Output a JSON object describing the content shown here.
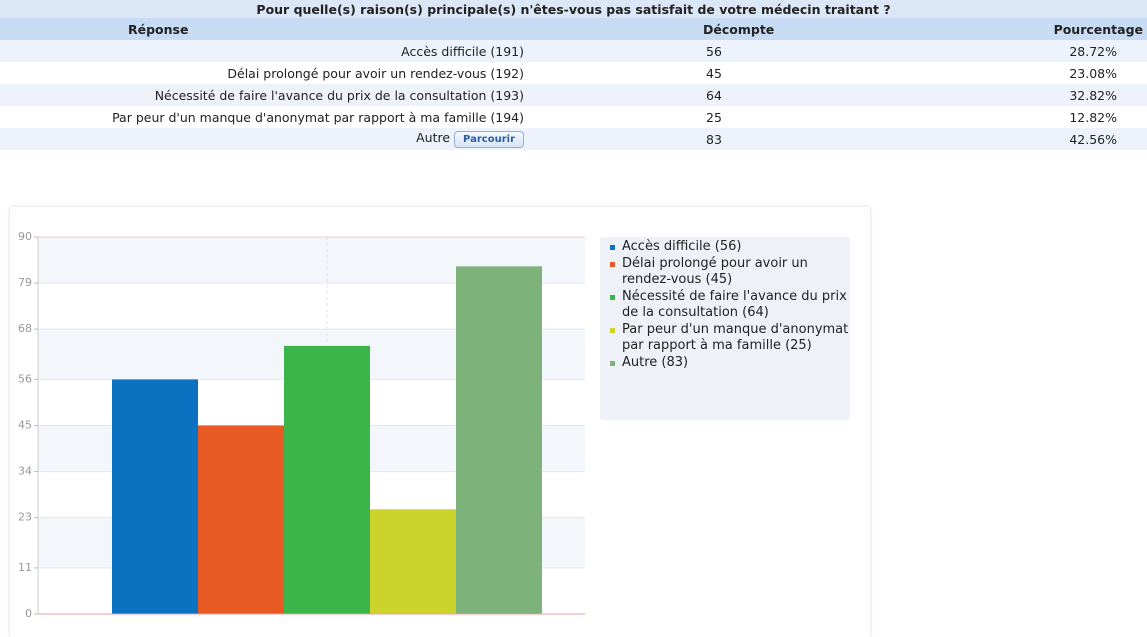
{
  "table": {
    "title": "Pour quelle(s) raison(s) principale(s) n'êtes-vous pas satisfait de votre médecin traitant ?",
    "headers": [
      "Réponse",
      "Décompte",
      "Pourcentage"
    ],
    "rows": [
      [
        "Accès difficile (191)",
        56,
        "28.72%"
      ],
      [
        "Délai prolongé pour avoir un rendez-vous (192)",
        45,
        "23.08%"
      ],
      [
        "Nécessité de faire l'avance du prix de la consultation (193)",
        64,
        "32.82%"
      ],
      [
        "Par peur d'un manque d'anonymat par rapport à ma famille (194)",
        25,
        "12.82%"
      ],
      [
        "Autre",
        83,
        "42.56%"
      ]
    ],
    "browse_button": "Parcourir"
  },
  "chart_data": {
    "type": "bar",
    "categories": [
      "Accès difficile (56)",
      "Délai prolongé pour avoir un rendez-vous (45)",
      "Nécessité de faire l'avance du prix de la consultation (64)",
      "Par peur d'un manque d'anonymat par rapport à ma famille (25)",
      "Autre (83)"
    ],
    "values": [
      56,
      45,
      64,
      25,
      83
    ],
    "colors": [
      "#0b72c2",
      "#e85a24",
      "#3bb54a",
      "#ccd42c",
      "#7db27a"
    ],
    "ylim": [
      0,
      90
    ],
    "yticks": [
      0,
      11,
      23,
      34,
      45,
      56,
      68,
      79,
      90
    ],
    "grid": true,
    "legend": "right"
  }
}
